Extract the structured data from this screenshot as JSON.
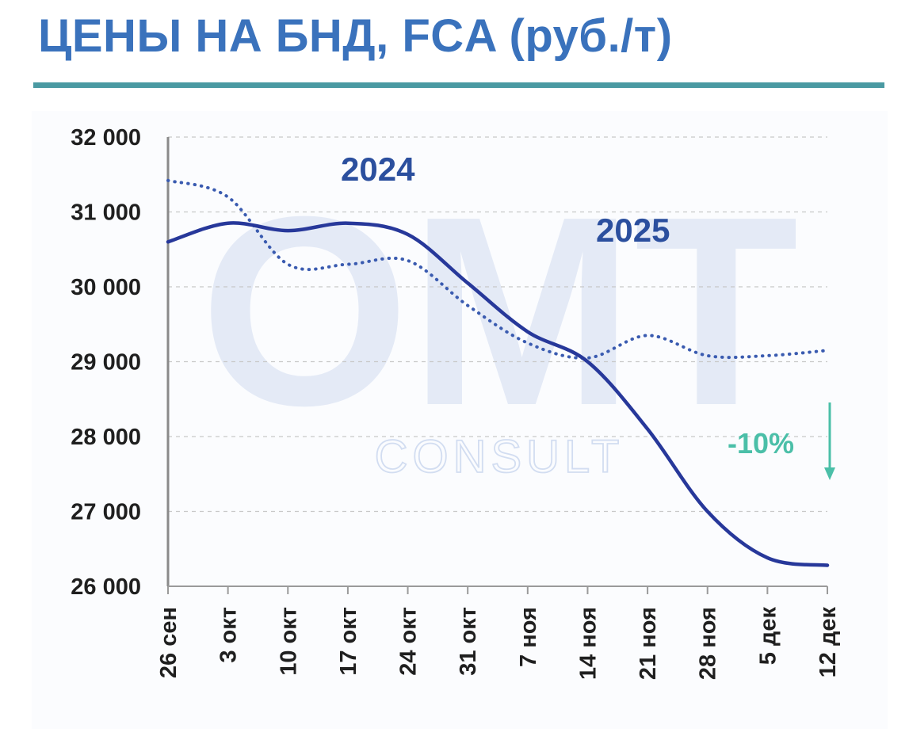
{
  "title": "ЦЕНЫ НА БНД, FCA (руб./т)",
  "watermark": {
    "logo": "OMT",
    "sub": "CONSULT"
  },
  "colors": {
    "title": "#3a72bc",
    "rule": "#4a9aa2",
    "series_2025": "#27389a",
    "series_2024": "#3a5bb0",
    "change": "#4bbfa8"
  },
  "chart_data": {
    "type": "line",
    "title": "ЦЕНЫ НА БНД, FCA (руб./т)",
    "xlabel": "",
    "ylabel": "",
    "categories": [
      "26 сен",
      "3 окт",
      "10 окт",
      "17 окт",
      "24 окт",
      "31 окт",
      "7 ноя",
      "14 ноя",
      "21 ноя",
      "28 ноя",
      "5 дек",
      "12 дек"
    ],
    "ylim": [
      26000,
      32000
    ],
    "yticks": [
      26000,
      27000,
      28000,
      29000,
      30000,
      31000,
      32000
    ],
    "ytick_labels": [
      "26 000",
      "27 000",
      "28 000",
      "29 000",
      "30 000",
      "31 000",
      "32 000"
    ],
    "grid": "horizontal dashed",
    "series": [
      {
        "name": "2024",
        "style": "dotted",
        "values": [
          31420,
          31200,
          30300,
          30300,
          30350,
          29750,
          29250,
          29050,
          29350,
          29080,
          29080,
          29150
        ]
      },
      {
        "name": "2025",
        "style": "solid",
        "values": [
          30600,
          30850,
          30750,
          30850,
          30700,
          30050,
          29400,
          29000,
          28100,
          27000,
          26380,
          26280
        ]
      }
    ],
    "annotations": [
      {
        "text": "-10%",
        "kind": "change",
        "arrow": "down"
      }
    ]
  }
}
